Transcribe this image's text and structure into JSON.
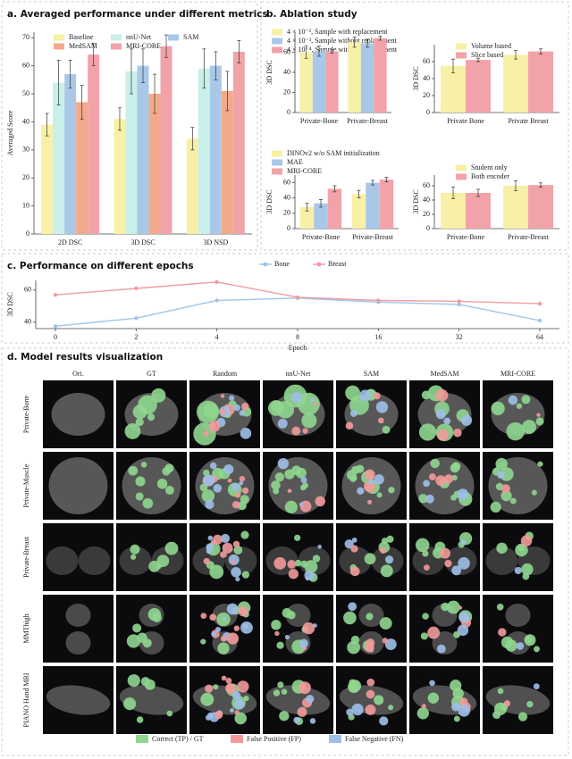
{
  "chart_data": [
    {
      "type": "bar",
      "title": "a. Averaged performance under different metrics",
      "ylabel": "Averaged Score",
      "categories": [
        "2D DSC",
        "3D DSC",
        "3D NSD"
      ],
      "series": [
        {
          "name": "Baseline",
          "color": "#f7f0a6",
          "values": [
            39,
            41,
            34
          ],
          "errors": [
            4,
            4,
            4
          ]
        },
        {
          "name": "nnU-Net",
          "color": "#c9efe9",
          "values": [
            54,
            58,
            59
          ],
          "errors": [
            8,
            8,
            7
          ]
        },
        {
          "name": "SAM",
          "color": "#a9c8e8",
          "values": [
            57,
            60,
            60
          ],
          "errors": [
            5,
            6,
            5
          ]
        },
        {
          "name": "MedSAM",
          "color": "#f3aa8c",
          "values": [
            47,
            50,
            51
          ],
          "errors": [
            6,
            7,
            7
          ]
        },
        {
          "name": "MRI-CORE",
          "color": "#f2a3a9",
          "values": [
            64,
            67,
            65
          ],
          "errors": [
            4,
            4,
            4
          ]
        }
      ],
      "ylim": [
        0,
        72
      ],
      "yticks": [
        0,
        10,
        20,
        30,
        40,
        50,
        60,
        70
      ],
      "legend": "upper left"
    },
    {
      "type": "bar",
      "title": "b. Ablation study",
      "ylabel": "3D DSC",
      "categories": [
        "Private-Bone",
        "Private-Breast"
      ],
      "series": [
        {
          "name": "4 × 10⁻², Sample with replacement",
          "color": "#f7f0a6",
          "values": [
            60,
            70
          ],
          "errors": [
            6,
            5
          ]
        },
        {
          "name": "4 × 10⁻³, Sample without replacement",
          "color": "#a9c8e8",
          "values": [
            61,
            69
          ],
          "errors": [
            5,
            4
          ]
        },
        {
          "name": "4 × 10⁻⁴, Sample without replacement",
          "color": "#f2a3a9",
          "values": [
            61,
            74
          ],
          "errors": [
            2,
            2
          ]
        }
      ],
      "ylim": [
        0,
        80
      ],
      "yticks": [
        0,
        20,
        40,
        60
      ],
      "legend": "upper left"
    },
    {
      "type": "bar",
      "ylabel": "3D DSC",
      "categories": [
        "Private Bone",
        "Private Breast"
      ],
      "series": [
        {
          "name": "Volume based",
          "color": "#f7f0a6",
          "values": [
            55,
            68
          ],
          "errors": [
            8,
            5
          ]
        },
        {
          "name": "Slice based",
          "color": "#f2a3a9",
          "values": [
            62,
            72
          ],
          "errors": [
            2,
            3
          ]
        }
      ],
      "ylim": [
        0,
        80
      ],
      "yticks": [
        0,
        20,
        40,
        60
      ],
      "legend": "upper left"
    },
    {
      "type": "bar",
      "ylabel": "3D DSC",
      "categories": [
        "Private-Bone",
        "Private-Breast"
      ],
      "series": [
        {
          "name": "DINOv2 w/o SAM initialization",
          "color": "#f7f0a6",
          "values": [
            28,
            45
          ],
          "errors": [
            5,
            5
          ]
        },
        {
          "name": "MAE",
          "color": "#a9c8e8",
          "values": [
            33,
            60
          ],
          "errors": [
            5,
            3
          ]
        },
        {
          "name": "MRI-CORE",
          "color": "#f2a3a9",
          "values": [
            52,
            64
          ],
          "errors": [
            4,
            3
          ]
        }
      ],
      "ylim": [
        0,
        70
      ],
      "yticks": [
        0,
        20,
        40,
        60
      ],
      "legend": "upper left"
    },
    {
      "type": "bar",
      "ylabel": "3D DSC",
      "categories": [
        "Private-Bone",
        "Private-Breast"
      ],
      "series": [
        {
          "name": "Student only",
          "color": "#f7f0a6",
          "values": [
            50,
            60
          ],
          "errors": [
            8,
            7
          ]
        },
        {
          "name": "Both encoder",
          "color": "#f2a3a9",
          "values": [
            50,
            61
          ],
          "errors": [
            5,
            3
          ]
        }
      ],
      "ylim": [
        0,
        75
      ],
      "yticks": [
        0,
        20,
        40,
        60
      ],
      "legend": "upper left"
    },
    {
      "type": "line",
      "title": "c. Performance on different epochs",
      "ylabel": "3D DSC",
      "xlabel": "Epoch",
      "categories": [
        "0",
        "2",
        "4",
        "8",
        "16",
        "32",
        "64"
      ],
      "series": [
        {
          "name": "Bone",
          "color": "#9ec5e8",
          "values": [
            37.5,
            42.5,
            53.5,
            55,
            52.5,
            51,
            41
          ]
        },
        {
          "name": "Breast",
          "color": "#f19ca0",
          "values": [
            57,
            61,
            65,
            55.5,
            53.5,
            53,
            51.5
          ]
        }
      ],
      "ylim": [
        36,
        66
      ],
      "yticks": [
        40,
        60
      ],
      "legend": "upper center"
    }
  ],
  "visualization": {
    "title": "d. Model results visualization",
    "columns": [
      "Ori.",
      "GT",
      "Random",
      "nnU-Net",
      "SAM",
      "MedSAM",
      "MRI-CORE"
    ],
    "rows": [
      "Private-Bone",
      "Private-Muscle",
      "Private-Breast",
      "MMThigh",
      "PIANO Hand MRI"
    ],
    "legend": [
      "Correct (TP) / GT",
      "False Positive (FP)",
      "False Negative (FN)"
    ]
  }
}
